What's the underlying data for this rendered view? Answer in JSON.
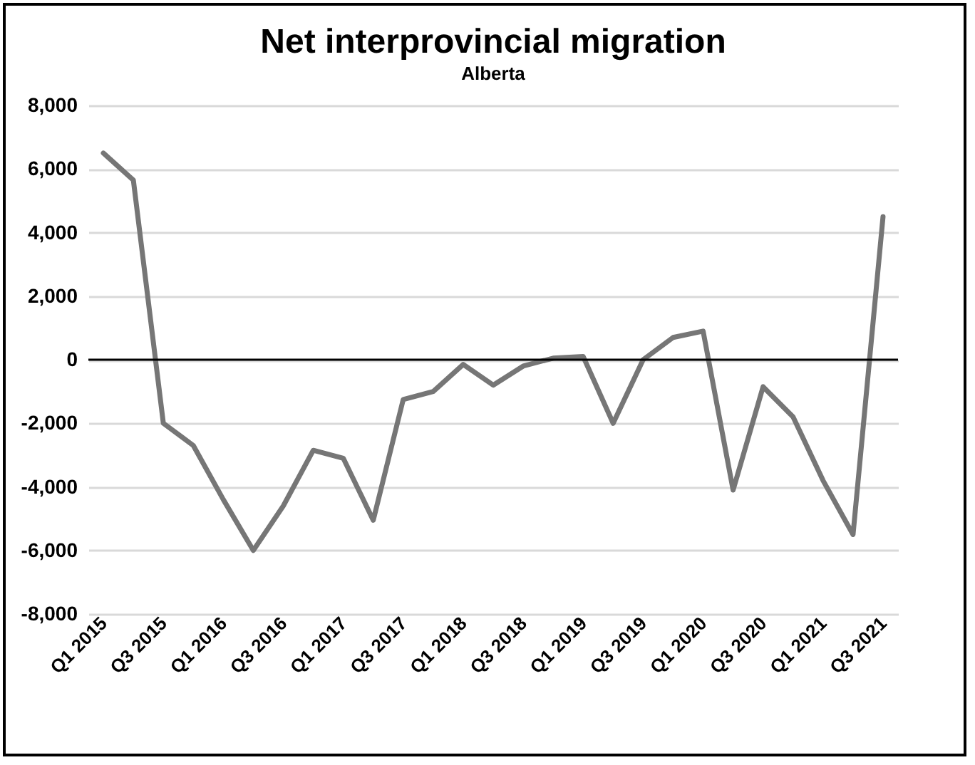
{
  "chart_data": {
    "type": "line",
    "title": "Net interprovincial migration",
    "subtitle": "Alberta",
    "categories": [
      "Q1 2015",
      null,
      "Q3 2015",
      null,
      "Q1 2016",
      null,
      "Q3 2016",
      null,
      "Q1 2017",
      null,
      "Q3 2017",
      null,
      "Q1 2018",
      null,
      "Q3 2018",
      null,
      "Q1 2019",
      null,
      "Q3 2019",
      null,
      "Q1 2020",
      null,
      "Q3 2020",
      null,
      "Q1 2021",
      null,
      "Q3 2021"
    ],
    "series": [
      {
        "color": "#767676",
        "values": [
          6500,
          5650,
          -2000,
          -2700,
          -4400,
          -6000,
          -4600,
          -2850,
          -3100,
          -5050,
          -1250,
          -1000,
          -150,
          -800,
          -200,
          50,
          100,
          -2000,
          0,
          700,
          900,
          -4100,
          -850,
          -1800,
          -3800,
          -5500,
          4500
        ]
      }
    ],
    "ylim": [
      -8000,
      8000
    ],
    "yticks": [
      {
        "value": -8000,
        "label": "-8,000"
      },
      {
        "value": -6000,
        "label": "-6,000"
      },
      {
        "value": -4000,
        "label": "-4,000"
      },
      {
        "value": -2000,
        "label": "-2,000"
      },
      0,
      {
        "value": 2000,
        "label": "2,000"
      },
      {
        "value": 4000,
        "label": "4,000"
      },
      {
        "value": 6000,
        "label": "6,000"
      },
      {
        "value": 8000,
        "label": "8,000"
      }
    ],
    "ref_lines": [
      {
        "axis": "y",
        "value": 0,
        "color": "#000000"
      }
    ],
    "grid": "y",
    "marker": "none",
    "line_style": "solid"
  }
}
